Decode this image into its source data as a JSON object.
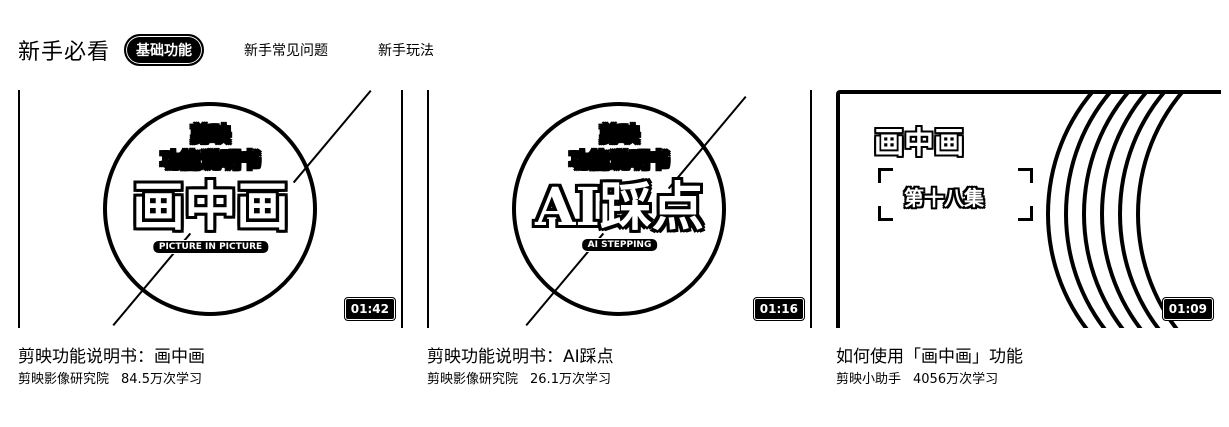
{
  "header": {
    "section_title": "新手必看",
    "tabs": [
      {
        "label": "基础功能",
        "active": true
      },
      {
        "label": "新手常见问题",
        "active": false
      },
      {
        "label": "新手玩法",
        "active": false
      }
    ]
  },
  "cards": [
    {
      "thumb": {
        "line1": "剪映",
        "line2": "功能说明书",
        "big": "画中画",
        "pill": "PICTURE IN PICTURE"
      },
      "duration": "01:42",
      "title": "剪映功能说明书：画中画",
      "author": "剪映影像研究院",
      "views": "84.5万次学习"
    },
    {
      "thumb": {
        "line1": "剪映",
        "line2": "功能说明书",
        "big": "AI踩点",
        "pill": "AI STEPPING"
      },
      "duration": "01:16",
      "title": "剪映功能说明书：AI踩点",
      "author": "剪映影像研究院",
      "views": "26.1万次学习"
    },
    {
      "thumb": {
        "big": "画中画",
        "episode": "第十八集"
      },
      "duration": "01:09",
      "title": "如何使用「画中画」功能",
      "author": "剪映小助手",
      "views": "4056万次学习"
    }
  ]
}
